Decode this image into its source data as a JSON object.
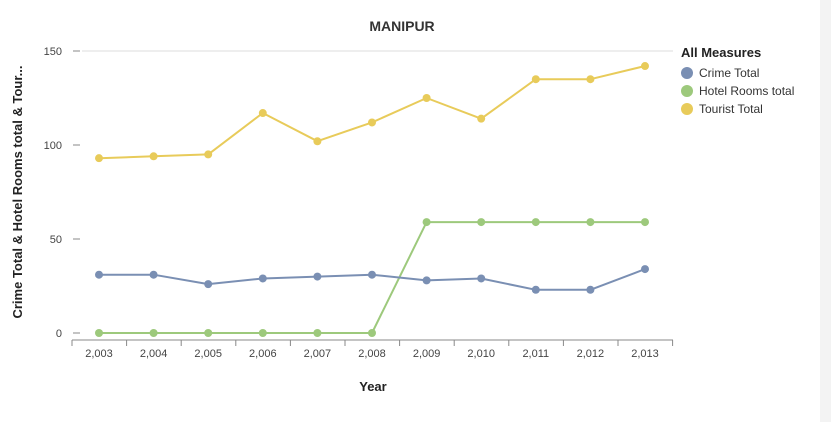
{
  "chart_data": {
    "type": "line",
    "title": "MANIPUR",
    "xlabel": "Year",
    "ylabel": "Crime Total & Hotel Rooms total & Tour...",
    "x": [
      2003,
      2004,
      2005,
      2006,
      2007,
      2008,
      2009,
      2010,
      2011,
      2012,
      2013
    ],
    "x_tick_labels": [
      "2,003",
      "2,004",
      "2,005",
      "2,006",
      "2,007",
      "2,008",
      "2,009",
      "2,010",
      "2,011",
      "2,012",
      "2,013"
    ],
    "yticks": [
      0,
      50,
      100,
      150
    ],
    "ylim": [
      0,
      150
    ],
    "grid": "y-top-line-only",
    "legend": {
      "title": "All Measures",
      "placement": "top-right"
    },
    "series": [
      {
        "name": "Crime Total",
        "color": "#7a8fb3",
        "values": [
          31,
          31,
          26,
          29,
          30,
          31,
          28,
          29,
          23,
          23,
          34
        ]
      },
      {
        "name": "Hotel Rooms total",
        "color": "#9dc97c",
        "values": [
          0,
          0,
          0,
          0,
          0,
          0,
          59,
          59,
          59,
          59,
          59
        ]
      },
      {
        "name": "Tourist Total",
        "color": "#e8cb5a",
        "values": [
          93,
          94,
          95,
          117,
          102,
          112,
          125,
          114,
          135,
          135,
          142
        ]
      }
    ]
  }
}
